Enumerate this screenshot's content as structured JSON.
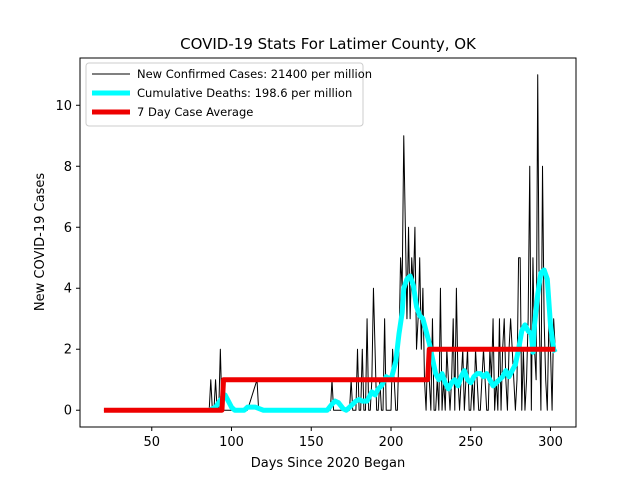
{
  "chart_data": {
    "type": "line",
    "title": "COVID-19 Stats For Latimer County, OK",
    "xlabel": "Days Since 2020 Began",
    "ylabel": "New COVID-19 Cases",
    "xlim": [
      5,
      316
    ],
    "ylim": [
      -0.55,
      11.55
    ],
    "xticks": [
      50,
      100,
      150,
      200,
      250,
      300
    ],
    "yticks": [
      0,
      2,
      4,
      6,
      8,
      10
    ],
    "grid": false,
    "legend_position": "top-left",
    "series": [
      {
        "name": "New Confirmed Cases: 21400 per million",
        "color": "#000000",
        "x": [
          20,
          86,
          87,
          88,
          89,
          90,
          91,
          92,
          93,
          94,
          95,
          96,
          97,
          110,
          116,
          117,
          118,
          119,
          120,
          160,
          161,
          162,
          163,
          164,
          165,
          166,
          167,
          168,
          169,
          170,
          171,
          172,
          173,
          174,
          175,
          176,
          177,
          178,
          179,
          180,
          181,
          182,
          183,
          184,
          185,
          186,
          187,
          188,
          189,
          190,
          191,
          192,
          193,
          194,
          195,
          196,
          197,
          198,
          199,
          200,
          201,
          202,
          203,
          204,
          205,
          206,
          207,
          208,
          209,
          210,
          211,
          212,
          213,
          214,
          215,
          216,
          217,
          218,
          219,
          220,
          221,
          222,
          223,
          224,
          225,
          226,
          227,
          228,
          229,
          230,
          231,
          232,
          233,
          234,
          235,
          236,
          237,
          238,
          239,
          240,
          241,
          242,
          243,
          244,
          245,
          246,
          247,
          248,
          249,
          250,
          251,
          252,
          253,
          254,
          255,
          256,
          257,
          258,
          259,
          260,
          261,
          262,
          263,
          264,
          265,
          266,
          267,
          268,
          269,
          270,
          271,
          272,
          273,
          274,
          275,
          276,
          277,
          278,
          279,
          280,
          281,
          282,
          283,
          284,
          285,
          286,
          287,
          288,
          289,
          290,
          291,
          292,
          293,
          294,
          295,
          296,
          297,
          298,
          299,
          300,
          301,
          302,
          303
        ],
        "y": [
          0,
          0,
          1,
          0,
          0,
          1,
          0,
          0,
          2,
          0,
          0,
          0,
          0,
          0,
          1,
          0,
          0,
          0,
          0,
          0,
          0,
          0,
          1,
          0,
          0,
          0,
          0,
          0,
          0,
          0,
          0,
          0,
          0,
          0,
          1,
          0,
          0,
          0,
          2,
          0,
          0,
          2,
          0,
          0,
          3,
          0,
          0,
          1,
          4,
          2,
          0,
          0,
          1,
          0,
          0,
          3,
          0,
          0,
          0,
          0,
          2,
          1,
          0,
          0,
          2,
          5,
          4,
          9,
          6,
          3,
          6,
          3,
          5,
          4,
          6,
          2,
          3,
          5,
          2,
          4,
          1,
          0,
          2,
          1,
          0,
          3,
          0,
          0,
          1,
          0,
          4,
          0,
          1,
          0,
          2,
          1,
          0,
          1,
          3,
          0,
          4,
          1,
          0,
          1,
          2,
          0,
          1,
          2,
          0,
          0,
          1,
          0,
          2,
          1,
          0,
          0,
          1,
          2,
          1,
          0,
          0,
          2,
          1,
          3,
          0,
          1,
          0,
          3,
          0,
          2,
          3,
          1,
          0,
          2,
          3,
          2,
          1,
          0,
          1,
          5,
          5,
          0,
          2,
          0,
          1,
          3,
          8,
          0,
          5,
          2,
          1,
          11,
          3,
          0,
          8,
          3,
          1,
          0,
          3,
          2,
          0,
          3,
          2
        ],
        "stroke_width": 1
      },
      {
        "name": "Cumulative Deaths: 198.6 per million",
        "color": "#00ffff",
        "x": [
          86,
          90,
          94,
          96,
          98,
          100,
          102,
          104,
          106,
          108,
          110,
          115,
          120,
          125,
          130,
          135,
          140,
          145,
          150,
          155,
          160,
          163,
          165,
          167,
          170,
          172,
          175,
          178,
          180,
          182,
          185,
          188,
          190,
          192,
          194,
          195,
          197,
          200,
          203,
          205,
          207,
          208,
          210,
          212,
          214,
          216,
          218,
          220,
          222,
          224,
          226,
          228,
          230,
          232,
          234,
          236,
          238,
          240,
          242,
          244,
          246,
          248,
          250,
          252,
          254,
          256,
          258,
          260,
          262,
          264,
          266,
          268,
          270,
          272,
          274,
          276,
          278,
          280,
          282,
          284,
          286,
          288,
          289,
          290,
          292,
          294,
          296,
          298,
          300,
          302,
          303
        ],
        "y": [
          0,
          0.1,
          0.4,
          0.5,
          0.3,
          0.1,
          0,
          0,
          0,
          0,
          0.1,
          0.1,
          0,
          0,
          0,
          0,
          0,
          0,
          0,
          0,
          0,
          0.2,
          0.3,
          0.25,
          0.05,
          0,
          0.15,
          0.3,
          0.35,
          0.3,
          0.3,
          0.6,
          0.5,
          0.7,
          0.8,
          0.9,
          1.1,
          1.0,
          1.6,
          2.5,
          3.2,
          4.0,
          4.3,
          4.4,
          4.1,
          3.4,
          3.1,
          3.0,
          2.6,
          2.2,
          1.7,
          1.2,
          1.0,
          1.2,
          0.9,
          0.7,
          0.9,
          1.0,
          0.8,
          1.1,
          1.3,
          1.0,
          0.9,
          1.1,
          1.2,
          1.2,
          1.1,
          1.2,
          1.0,
          0.8,
          0.9,
          1.0,
          1.1,
          1.3,
          1.1,
          1.3,
          1.5,
          2.0,
          2.6,
          2.8,
          2.6,
          2.5,
          1.9,
          2.8,
          3.8,
          4.5,
          4.6,
          4.3,
          2.8,
          2.0,
          1.9
        ],
        "stroke_width": 5
      },
      {
        "name": "7 Day Case Average",
        "color": "#ee0000",
        "x": [
          20,
          94,
          95,
          223,
          224,
          303
        ],
        "y": [
          0,
          0,
          1,
          1,
          2,
          2
        ],
        "stroke_width": 5
      }
    ]
  }
}
